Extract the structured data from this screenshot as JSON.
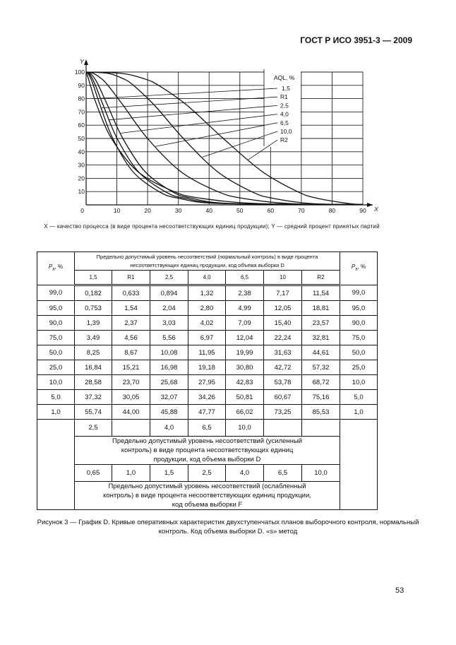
{
  "header": {
    "doc_code": "ГОСТ Р ИСО 3951-3 — 2009"
  },
  "chart_data": {
    "type": "line",
    "xlabel": "X",
    "ylabel": "Y",
    "xlim": [
      0,
      90
    ],
    "ylim": [
      0,
      100
    ],
    "x_ticks": [
      "0",
      "10",
      "20",
      "30",
      "40",
      "50",
      "60",
      "70",
      "80",
      "90"
    ],
    "y_ticks": [
      "10",
      "20",
      "30",
      "40",
      "50",
      "60",
      "70",
      "80",
      "90",
      "100"
    ],
    "grid": true,
    "legend_title": "AQL, %",
    "legend_placement": "top-right",
    "pa": [
      99.0,
      95.0,
      90.0,
      75.0,
      50.0,
      25.0,
      10.0,
      5.0,
      1.0
    ],
    "series": [
      {
        "name": "1,5",
        "x": [
          0.182,
          0.753,
          1.39,
          3.49,
          8.25,
          16.84,
          28.58,
          37.32,
          55.74
        ]
      },
      {
        "name": "R1",
        "x": [
          0.633,
          1.54,
          2.37,
          4.56,
          8.67,
          15.21,
          23.7,
          30.05,
          44.0
        ]
      },
      {
        "name": "2,5",
        "x": [
          0.894,
          2.04,
          3.03,
          5.56,
          10.08,
          16.98,
          25.68,
          32.07,
          45.88
        ]
      },
      {
        "name": "4,0",
        "x": [
          1.32,
          2.8,
          4.02,
          6.97,
          11.95,
          19.18,
          27.95,
          34.26,
          47.77
        ]
      },
      {
        "name": "6,5",
        "x": [
          2.38,
          4.99,
          7.09,
          12.04,
          19.99,
          30.8,
          42.83,
          50.81,
          66.02
        ]
      },
      {
        "name": "10,0",
        "x": [
          7.17,
          12.05,
          15.4,
          22.24,
          31.63,
          42.72,
          53.78,
          60.67,
          73.25
        ]
      },
      {
        "name": "R2",
        "x": [
          11.54,
          18.81,
          23.57,
          32.81,
          44.61,
          57.32,
          68.72,
          75.16,
          85.53
        ]
      }
    ]
  },
  "axis_caption": "X — качество процесса (в виде процента несоответствующих единиц продукции); Y — средний процент принятых партий",
  "table": {
    "pa_label": "P",
    "pa_sub": "a",
    "pa_unit": ", %",
    "normal_header": "Предельно допустимый уровень несоответствий (нормальный контроль) в виде процента несоответствующих единиц продукции, код объема выборки D",
    "columns": [
      "1,5",
      "R1",
      "2,5",
      "4,0",
      "6,5",
      "10",
      "R2"
    ],
    "rows": [
      [
        "99,0",
        "0,182",
        "0,633",
        "0,894",
        "1,32",
        "2,38",
        "7,17",
        "11,54",
        "99,0"
      ],
      [
        "95,0",
        "0,753",
        "1,54",
        "2,04",
        "2,80",
        "4,99",
        "12,05",
        "18,81",
        "95,0"
      ],
      [
        "90,0",
        "1,39",
        "2,37",
        "3,03",
        "4,02",
        "7,09",
        "15,40",
        "23,57",
        "90,0"
      ],
      [
        "75,0",
        "3,49",
        "4,56",
        "5,56",
        "6,97",
        "12,04",
        "22,24",
        "32,81",
        "75,0"
      ],
      [
        "50,0",
        "8,25",
        "8,67",
        "10,08",
        "11,95",
        "19,99",
        "31,63",
        "44,61",
        "50,0"
      ],
      [
        "25,0",
        "16,84",
        "15,21",
        "16,98",
        "19,18",
        "30,80",
        "42,72",
        "57,32",
        "25,0"
      ],
      [
        "10,0",
        "28,58",
        "23,70",
        "25,68",
        "27,95",
        "42,83",
        "53,78",
        "68,72",
        "10,0"
      ],
      [
        "5,0",
        "37,32",
        "30,05",
        "32,07",
        "34,26",
        "50,81",
        "60,67",
        "75,16",
        "5,0"
      ],
      [
        "1,0",
        "55,74",
        "44,00",
        "45,88",
        "47,77",
        "66,02",
        "73,25",
        "85,53",
        "1,0"
      ]
    ],
    "tightened_values": [
      "2,5",
      "",
      "4,0",
      "6,5",
      "10,0",
      "",
      ""
    ],
    "tightened_header": "Предельно допустимый уровень несоответствий (усиленный контроль) в виде процента несоответствующих единиц продукции, код объема выборки D",
    "reduced_values": [
      "0,65",
      "1,0",
      "1,5",
      "2,5",
      "4,0",
      "6,5",
      "10,0"
    ],
    "reduced_header": "Предельно допустимый уровень несоответствий (ослабленный контроль) в виде процента несоответствующих единиц продукции, код объема выборки F"
  },
  "caption": "Рисунок 3 — График D. Кривые оперативных характеристик двухступенчатых планов выборочного контроля, нормальный контроль. Код объема выборки D. «s» метод",
  "page_number": "53"
}
